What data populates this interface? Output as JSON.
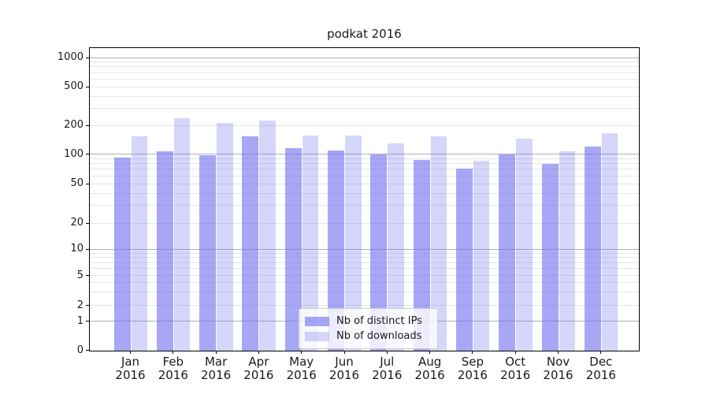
{
  "figure": {
    "title": "podkat 2016"
  },
  "chart_data": {
    "type": "bar",
    "title": "podkat 2016",
    "categories": [
      "Jan 2016",
      "Feb 2016",
      "Mar 2016",
      "Apr 2016",
      "May 2016",
      "Jun 2016",
      "Jul 2016",
      "Aug 2016",
      "Sep 2016",
      "Oct 2016",
      "Nov 2016",
      "Dec 2016"
    ],
    "x_tick_months": [
      "Jan",
      "Feb",
      "Mar",
      "Apr",
      "May",
      "Jun",
      "Jul",
      "Aug",
      "Sep",
      "Oct",
      "Nov",
      "Dec"
    ],
    "x_tick_year": "2016",
    "series": [
      {
        "name": "Nb of distinct IPs",
        "values": [
          93,
          108,
          98,
          153,
          116,
          109,
          100,
          88,
          71,
          99,
          79,
          121
        ],
        "color": "rgba(108,108,240,0.60)"
      },
      {
        "name": "Nb of downloads",
        "values": [
          155,
          239,
          213,
          225,
          157,
          157,
          131,
          155,
          86,
          146,
          108,
          166
        ],
        "color": "rgba(108,108,240,0.28)"
      }
    ],
    "xlabel": "",
    "ylabel": "",
    "y_scale": "symlog",
    "y_ticks": [
      0,
      1,
      2,
      5,
      10,
      20,
      50,
      100,
      200,
      500,
      1000
    ],
    "y_tick_labels": [
      "0",
      "1",
      "2",
      "5",
      "10",
      "20",
      "50",
      "100",
      "200",
      "500",
      "1000"
    ],
    "y_major_gridlines": [
      1,
      10,
      100,
      1000
    ],
    "y_minor_gridlines": [
      2,
      3,
      4,
      5,
      6,
      7,
      8,
      9,
      20,
      30,
      40,
      50,
      60,
      70,
      80,
      90,
      200,
      300,
      400,
      500,
      600,
      700,
      800,
      900
    ],
    "ylim": [
      0,
      1200
    ],
    "grid": "both",
    "legend": {
      "position": "lower center",
      "entries": [
        "Nb of distinct IPs",
        "Nb of downloads"
      ]
    }
  },
  "colors": {
    "bar_base": "#6c6cf0",
    "bar_dark": "rgba(108,108,240,0.60)",
    "bar_light": "rgba(108,108,240,0.28)",
    "major_grid": "#b1b1b1",
    "minor_grid": "#e7e7e7",
    "spine": "#000000",
    "text": "#1a1a1a",
    "legend_border": "#cccccc"
  }
}
